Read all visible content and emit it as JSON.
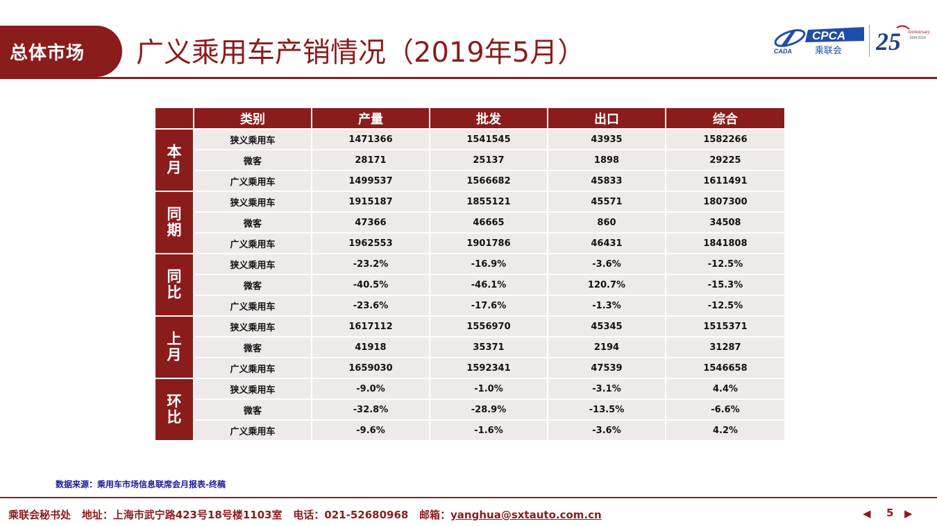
{
  "header": {
    "section_label": "总体市场",
    "title": "广义乘用车产销情况（2019年5月）",
    "logo_cpca_text": "CPCA",
    "logo_cpca_sub": "乘联会",
    "logo_left_text": "CADA",
    "logo_anniv_number": "25",
    "logo_anniv_word": "Anniversary",
    "logo_anniv_years": "1994-2019"
  },
  "table": {
    "headers": [
      "",
      "类别",
      "产量",
      "批发",
      "出口",
      "综合"
    ],
    "groups": [
      {
        "label": "本月",
        "rows": [
          [
            "狭义乘用车",
            "1471366",
            "1541545",
            "43935",
            "1582266"
          ],
          [
            "微客",
            "28171",
            "25137",
            "1898",
            "29225"
          ],
          [
            "广义乘用车",
            "1499537",
            "1566682",
            "45833",
            "1611491"
          ]
        ]
      },
      {
        "label": "同期",
        "rows": [
          [
            "狭义乘用车",
            "1915187",
            "1855121",
            "45571",
            "1807300"
          ],
          [
            "微客",
            "47366",
            "46665",
            "860",
            "34508"
          ],
          [
            "广义乘用车",
            "1962553",
            "1901786",
            "46431",
            "1841808"
          ]
        ]
      },
      {
        "label": "同比",
        "rows": [
          [
            "狭义乘用车",
            "-23.2%",
            "-16.9%",
            "-3.6%",
            "-12.5%"
          ],
          [
            "微客",
            "-40.5%",
            "-46.1%",
            "120.7%",
            "-15.3%"
          ],
          [
            "广义乘用车",
            "-23.6%",
            "-17.6%",
            "-1.3%",
            "-12.5%"
          ]
        ]
      },
      {
        "label": "上月",
        "rows": [
          [
            "狭义乘用车",
            "1617112",
            "1556970",
            "45345",
            "1515371"
          ],
          [
            "微客",
            "41918",
            "35371",
            "2194",
            "31287"
          ],
          [
            "广义乘用车",
            "1659030",
            "1592341",
            "47539",
            "1546658"
          ]
        ]
      },
      {
        "label": "环比",
        "rows": [
          [
            "狭义乘用车",
            "-9.0%",
            "-1.0%",
            "-3.1%",
            "4.4%"
          ],
          [
            "微客",
            "-32.8%",
            "-28.9%",
            "-13.5%",
            "-6.6%"
          ],
          [
            "广义乘用车",
            "-9.6%",
            "-1.6%",
            "-3.6%",
            "4.2%"
          ]
        ]
      }
    ]
  },
  "source_note": "数据来源：乘用车市场信息联席会月报表-终稿",
  "footer": {
    "org": "乘联会秘书处",
    "address": "地址：上海市武宁路423号18号楼1103室",
    "phone": "电话：021-52680968",
    "email_label": "邮箱：",
    "email": "yanghua@sxtauto.com.cn"
  },
  "pager": {
    "page_number": "5",
    "prev_icon": "triangle-left-icon",
    "next_icon": "triangle-right-icon"
  },
  "colors": {
    "brand": "#8b1c1c",
    "cell_bg": "#efeaea",
    "source_text": "#1a1a9e"
  }
}
